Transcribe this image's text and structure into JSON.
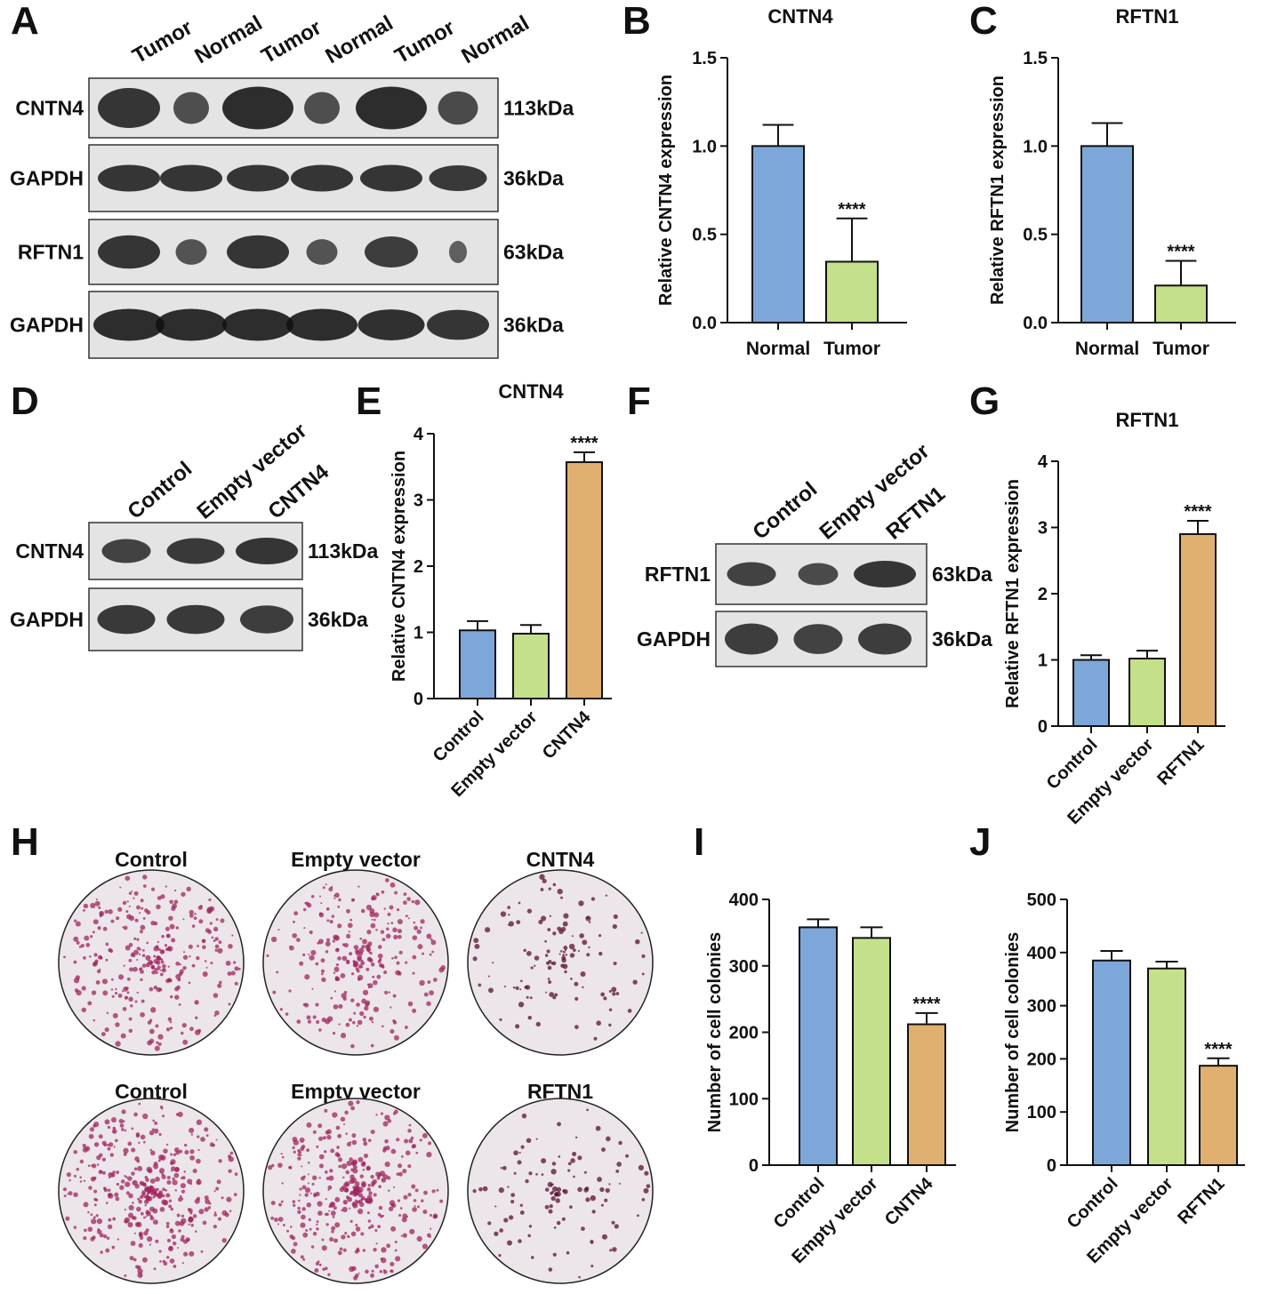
{
  "blots": [
    {
      "panel": "A",
      "lanes": [
        "Tumor",
        "Normal",
        "Tumor",
        "Normal",
        "Tumor",
        "Normal"
      ],
      "rows": [
        {
          "protein": "CNTN4",
          "size": "113kDa"
        },
        {
          "protein": "GAPDH",
          "size": "36kDa"
        },
        {
          "protein": "RFTN1",
          "size": "63kDa"
        },
        {
          "protein": "GAPDH",
          "size": "36kDa"
        }
      ]
    },
    {
      "panel": "D",
      "lanes": [
        "Control",
        "Empty vector",
        "CNTN4"
      ],
      "rows": [
        {
          "protein": "CNTN4",
          "size": "113kDa"
        },
        {
          "protein": "GAPDH",
          "size": "36kDa"
        }
      ]
    },
    {
      "panel": "F",
      "lanes": [
        "Control",
        "Empty vector",
        "RFTN1"
      ],
      "rows": [
        {
          "protein": "RFTN1",
          "size": "63kDa"
        },
        {
          "protein": "GAPDH",
          "size": "36kDa"
        }
      ]
    }
  ],
  "colony_assay": {
    "panel": "H",
    "rows": [
      [
        "Control",
        "Empty vector",
        "CNTN4"
      ],
      [
        "Control",
        "Empty vector",
        "RFTN1"
      ]
    ]
  },
  "chart_data": [
    {
      "type": "bar",
      "panel": "B",
      "title": "CNTN4",
      "y_label": "Relative CNTN4 expression",
      "categories": [
        "Normal",
        "Tumor"
      ],
      "values": [
        1.0,
        0.345
      ],
      "errors": [
        0.12,
        0.245
      ],
      "significance": [
        null,
        "****"
      ],
      "colors": [
        "#7da7d9",
        "#c5e08a"
      ],
      "ylim": [
        0,
        1.5
      ],
      "yticks": [
        {
          "value": 0,
          "label": "0.0"
        },
        {
          "value": 0.5,
          "label": "0.5"
        },
        {
          "value": 1,
          "label": "1.0"
        },
        {
          "value": 1.5,
          "label": "1.5"
        }
      ]
    },
    {
      "type": "bar",
      "panel": "C",
      "title": "RFTN1",
      "y_label": "Relative RFTN1 expression",
      "categories": [
        "Normal",
        "Tumor"
      ],
      "values": [
        1.0,
        0.21
      ],
      "errors": [
        0.13,
        0.14
      ],
      "significance": [
        null,
        "****"
      ],
      "colors": [
        "#7da7d9",
        "#c5e08a"
      ],
      "ylim": [
        0,
        1.5
      ],
      "yticks": [
        {
          "value": 0,
          "label": "0.0"
        },
        {
          "value": 0.5,
          "label": "0.5"
        },
        {
          "value": 1,
          "label": "1.0"
        },
        {
          "value": 1.5,
          "label": "1.5"
        }
      ]
    },
    {
      "type": "bar",
      "panel": "E",
      "title": "CNTN4",
      "y_label": "Relative CNTN4 expression",
      "categories": [
        "Control",
        "Empty vector",
        "CNTN4"
      ],
      "values": [
        1.03,
        0.98,
        3.57
      ],
      "errors": [
        0.14,
        0.13,
        0.15
      ],
      "significance": [
        null,
        null,
        "****"
      ],
      "colors": [
        "#7da7d9",
        "#c5e08a",
        "#e0b070"
      ],
      "ylim": [
        0,
        4
      ],
      "yticks": [
        0,
        1,
        2,
        3,
        4
      ]
    },
    {
      "type": "bar",
      "panel": "G",
      "title": "RFTN1",
      "y_label": "Relative RFTN1 expression",
      "categories": [
        "Control",
        "Empty vector",
        "RFTN1"
      ],
      "values": [
        1.0,
        1.02,
        2.9
      ],
      "errors": [
        0.07,
        0.12,
        0.2
      ],
      "significance": [
        null,
        null,
        "****"
      ],
      "colors": [
        "#7da7d9",
        "#c5e08a",
        "#e0b070"
      ],
      "ylim": [
        0,
        4
      ],
      "yticks": [
        0,
        1,
        2,
        3,
        4
      ]
    },
    {
      "type": "bar",
      "panel": "I",
      "y_label": "Number of cell colonies",
      "categories": [
        "Control",
        "Empty vector",
        "CNTN4"
      ],
      "values": [
        358,
        342,
        212
      ],
      "errors": [
        12,
        16,
        17
      ],
      "significance": [
        null,
        null,
        "****"
      ],
      "colors": [
        "#7da7d9",
        "#c5e08a",
        "#e0b070"
      ],
      "ylim": [
        0,
        400
      ],
      "yticks": [
        0,
        100,
        200,
        300,
        400
      ]
    },
    {
      "type": "bar",
      "panel": "J",
      "y_label": "Number of cell colonies",
      "categories": [
        "Control",
        "Empty vector",
        "RFTN1"
      ],
      "values": [
        385,
        370,
        187
      ],
      "errors": [
        18,
        13,
        14
      ],
      "significance": [
        null,
        null,
        "****"
      ],
      "colors": [
        "#7da7d9",
        "#c5e08a",
        "#e0b070"
      ],
      "ylim": [
        0,
        500
      ],
      "yticks": [
        0,
        100,
        200,
        300,
        400,
        500
      ]
    }
  ]
}
